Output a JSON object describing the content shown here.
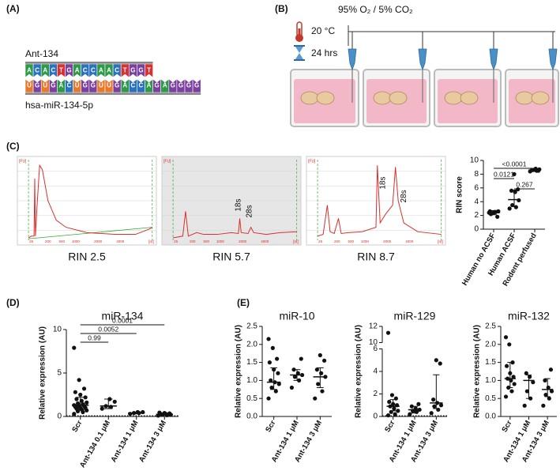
{
  "panels": {
    "a": "(A)",
    "b": "(B)",
    "c": "(C)",
    "d": "(D)",
    "e": "(E)"
  },
  "sequence": {
    "top_label": "Ant-134",
    "top_bases": [
      "A",
      "C",
      "A",
      "C",
      "T",
      "G",
      "A",
      "C",
      "C",
      "A",
      "A",
      "C",
      "T",
      "G",
      "G",
      "T"
    ],
    "bottom_label": "hsa-miR-134-5p",
    "bottom_bases": [
      "U",
      "G",
      "U",
      "G",
      "A",
      "C",
      "U",
      "G",
      "G",
      "U",
      "U",
      "G",
      "A",
      "C",
      "C",
      "A",
      "G",
      "A",
      "G",
      "G",
      "G",
      "G"
    ]
  },
  "setup": {
    "gas": "95% O₂ / 5% CO₂",
    "temperature": "20 °C",
    "duration": "24 hrs"
  },
  "traces": {
    "y_unit": "[FU]",
    "x_unit": "[nt]",
    "x_ticks": [
      "25",
      "200",
      "500",
      "1000",
      "2000",
      "4000"
    ],
    "items": [
      {
        "label": "RIN 2.5"
      },
      {
        "label": "RIN 5.7",
        "peaks": [
          "18s",
          "28s"
        ]
      },
      {
        "label": "RIN 8.7",
        "peaks": [
          "18s",
          "28s"
        ]
      }
    ]
  },
  "chart_data": [
    {
      "type": "dot",
      "ylabel": "RIN score",
      "categories": [
        "Human no ACSF",
        "Human ACSF",
        "Rodent perfused"
      ],
      "points": [
        [
          2.4,
          2.5,
          2.3,
          2.6,
          2.5,
          2.2,
          1.8,
          2.4,
          2.6
        ],
        [
          3.0,
          3.2,
          3.5,
          4.2,
          5.4,
          5.6,
          5.8,
          8.0
        ],
        [
          8.4,
          8.5,
          8.6,
          8.7,
          8.8,
          8.6,
          8.5
        ]
      ],
      "center": [
        2.4,
        4.3,
        8.6
      ],
      "error": [
        [
          2.1,
          2.7
        ],
        [
          3.3,
          5.7
        ],
        [
          8.4,
          8.8
        ]
      ],
      "ylim": [
        0,
        10
      ],
      "yticks": [
        0,
        2,
        4,
        6,
        8,
        10
      ],
      "comparisons": [
        {
          "from": 0,
          "to": 2,
          "label": "<0.0001"
        },
        {
          "from": 0,
          "to": 1,
          "label": "0.0121"
        },
        {
          "from": 1,
          "to": 2,
          "label": "0.267"
        }
      ]
    },
    {
      "type": "dot",
      "title": "miR-134",
      "ylabel": "Relative expression (AU)",
      "categories": [
        "Scr",
        "Ant-134 0.1 μM",
        "Ant-134 1 μM",
        "Ant-134 3 μM"
      ],
      "points": [
        [
          0.3,
          0.5,
          0.6,
          0.7,
          0.8,
          0.9,
          1.0,
          1.0,
          1.1,
          1.2,
          1.2,
          1.3,
          1.4,
          1.5,
          1.6,
          1.8,
          2.0,
          2.2,
          2.5,
          2.8,
          3.2,
          4.2,
          7.9
        ],
        [
          0.9,
          1.1,
          1.2,
          1.7,
          2.0
        ],
        [
          0.3,
          0.4,
          0.4,
          0.5,
          0.5
        ],
        [
          0.1,
          0.15,
          0.2,
          0.2,
          0.3,
          0.3,
          0.35,
          0.4,
          0.45
        ]
      ],
      "center": [
        1.3,
        1.2,
        0.4,
        0.25
      ],
      "error": [
        [
          0.8,
          2.2
        ],
        [
          0.9,
          2.0
        ],
        [
          0.3,
          0.5
        ],
        [
          0.15,
          0.35
        ]
      ],
      "ylim": [
        0,
        10
      ],
      "yticks": [
        0,
        5,
        10
      ],
      "reference_line": 0,
      "comparisons": [
        {
          "from": 0,
          "to": 3,
          "label": "0.0001"
        },
        {
          "from": 0,
          "to": 2,
          "label": "0.0052"
        },
        {
          "from": 0,
          "to": 1,
          "label": "0.99"
        }
      ]
    },
    {
      "type": "dot",
      "title": "miR-10",
      "ylabel": "Relative expression (AU)",
      "categories": [
        "Scr",
        "Ant-134 1 μM",
        "Ant-134 3 μM"
      ],
      "points": [
        [
          0.5,
          0.7,
          0.8,
          0.9,
          0.95,
          1.0,
          1.2,
          1.3,
          1.5,
          1.6,
          1.9,
          2.15
        ],
        [
          0.8,
          1.0,
          1.1,
          1.15,
          1.2,
          1.3,
          1.6
        ],
        [
          0.5,
          0.7,
          0.9,
          1.1,
          1.2,
          1.3,
          1.55,
          1.7
        ]
      ],
      "center": [
        0.95,
        1.15,
        1.1
      ],
      "error": [
        [
          0.75,
          1.35
        ],
        [
          1.0,
          1.3
        ],
        [
          0.8,
          1.35
        ]
      ],
      "ylim": [
        0,
        2.5
      ],
      "yticks": [
        {
          "value": 0,
          "label": "0.0"
        },
        0.5,
        {
          "value": 1,
          "label": "1.0"
        },
        1.5,
        {
          "value": 2,
          "label": "2.0"
        },
        2.5
      ]
    },
    {
      "type": "dot",
      "title": "miR-129",
      "ylabel": "Relative expression (AU)",
      "categories": [
        "Scr",
        "Ant-134 1 μM",
        "Ant-134 3 μM"
      ],
      "points": [
        [
          0.1,
          0.2,
          0.4,
          0.5,
          0.7,
          0.9,
          1.0,
          1.1,
          1.3,
          1.6,
          1.9,
          11.2
        ],
        [
          0.2,
          0.4,
          0.5,
          0.6,
          0.7,
          0.9,
          1.1
        ],
        [
          0.3,
          0.6,
          0.9,
          1.0,
          1.2,
          1.5,
          4.7,
          5.0
        ]
      ],
      "center": [
        0.9,
        0.6,
        1.2
      ],
      "error": [
        [
          0.5,
          1.5
        ],
        [
          0.3,
          0.9
        ],
        [
          0.7,
          3.7
        ]
      ],
      "ylim": [
        0,
        12
      ],
      "ybreak": [
        6,
        10
      ],
      "yticks": [
        0,
        2,
        4,
        6,
        10,
        12
      ],
      "reference_line": 0
    },
    {
      "type": "dot",
      "title": "miR-132",
      "ylabel": "Relative expression (AU)",
      "categories": [
        "Scr",
        "Ant-134 1 μM",
        "Ant-134 3 μM"
      ],
      "points": [
        [
          0.55,
          0.7,
          0.8,
          0.9,
          1.0,
          1.05,
          1.1,
          1.2,
          1.4,
          1.5,
          2.0,
          2.2
        ],
        [
          0.3,
          0.5,
          0.7,
          0.95,
          1.1,
          1.2
        ],
        [
          0.3,
          0.5,
          0.6,
          0.7,
          0.8,
          1.0,
          1.3
        ]
      ],
      "center": [
        1.05,
        1.0,
        0.75
      ],
      "error": [
        [
          0.8,
          1.5
        ],
        [
          0.5,
          1.15
        ],
        [
          0.55,
          1.05
        ]
      ],
      "ylim": [
        0,
        2.5
      ],
      "yticks": [
        {
          "value": 0,
          "label": "0.0"
        },
        0.5,
        {
          "value": 1,
          "label": "1.0"
        },
        1.5,
        {
          "value": 2,
          "label": "2.0"
        },
        2.5
      ]
    }
  ]
}
